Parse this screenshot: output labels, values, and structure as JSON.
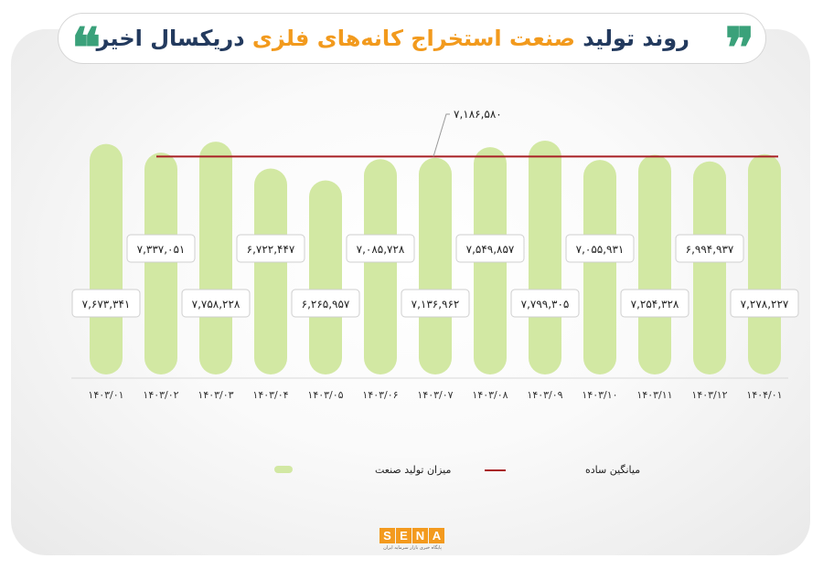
{
  "title": {
    "part1": "روند تولید",
    "highlight": "صنعت استخراج کانه‌های فلزی",
    "part2": "دریکسال اخیر"
  },
  "chart_data": {
    "type": "bar",
    "categories": [
      "۱۴۰۳/۰۱",
      "۱۴۰۳/۰۲",
      "۱۴۰۳/۰۳",
      "۱۴۰۳/۰۴",
      "۱۴۰۳/۰۵",
      "۱۴۰۳/۰۶",
      "۱۴۰۳/۰۷",
      "۱۴۰۳/۰۸",
      "۱۴۰۳/۰۹",
      "۱۴۰۳/۱۰",
      "۱۴۰۳/۱۱",
      "۱۴۰۳/۱۲",
      "۱۴۰۴/۰۱"
    ],
    "values": [
      7673341,
      7337051,
      7758228,
      6722447,
      6265957,
      7085728,
      7136962,
      7549857,
      7799305,
      7055931,
      7254328,
      6994937,
      7278227
    ],
    "value_labels": [
      "۷,۶۷۳,۳۴۱",
      "۷,۳۳۷,۰۵۱",
      "۷,۷۵۸,۲۲۸",
      "۶,۷۲۲,۴۴۷",
      "۶,۲۶۵,۹۵۷",
      "۷,۰۸۵,۷۲۸",
      "۷,۱۳۶,۹۶۲",
      "۷,۵۴۹,۸۵۷",
      "۷,۷۹۹,۳۰۵",
      "۷,۰۵۵,۹۳۱",
      "۷,۲۵۴,۳۲۸",
      "۶,۹۹۴,۹۳۷",
      "۷,۲۷۸,۲۲۷"
    ],
    "average": 7186580,
    "average_label": "۷,۱۸۶,۵۸۰",
    "series": [
      {
        "name": "میزان تولید صنعت",
        "type": "bar",
        "color": "#d2e8a3"
      },
      {
        "name": "میانگین ساده",
        "type": "line",
        "color": "#a81f24"
      }
    ],
    "legend_position": "bottom",
    "grid": false
  },
  "logo": {
    "text": "SENA",
    "subtitle": "پایگاه خبری بازار سرمایه ایران"
  }
}
